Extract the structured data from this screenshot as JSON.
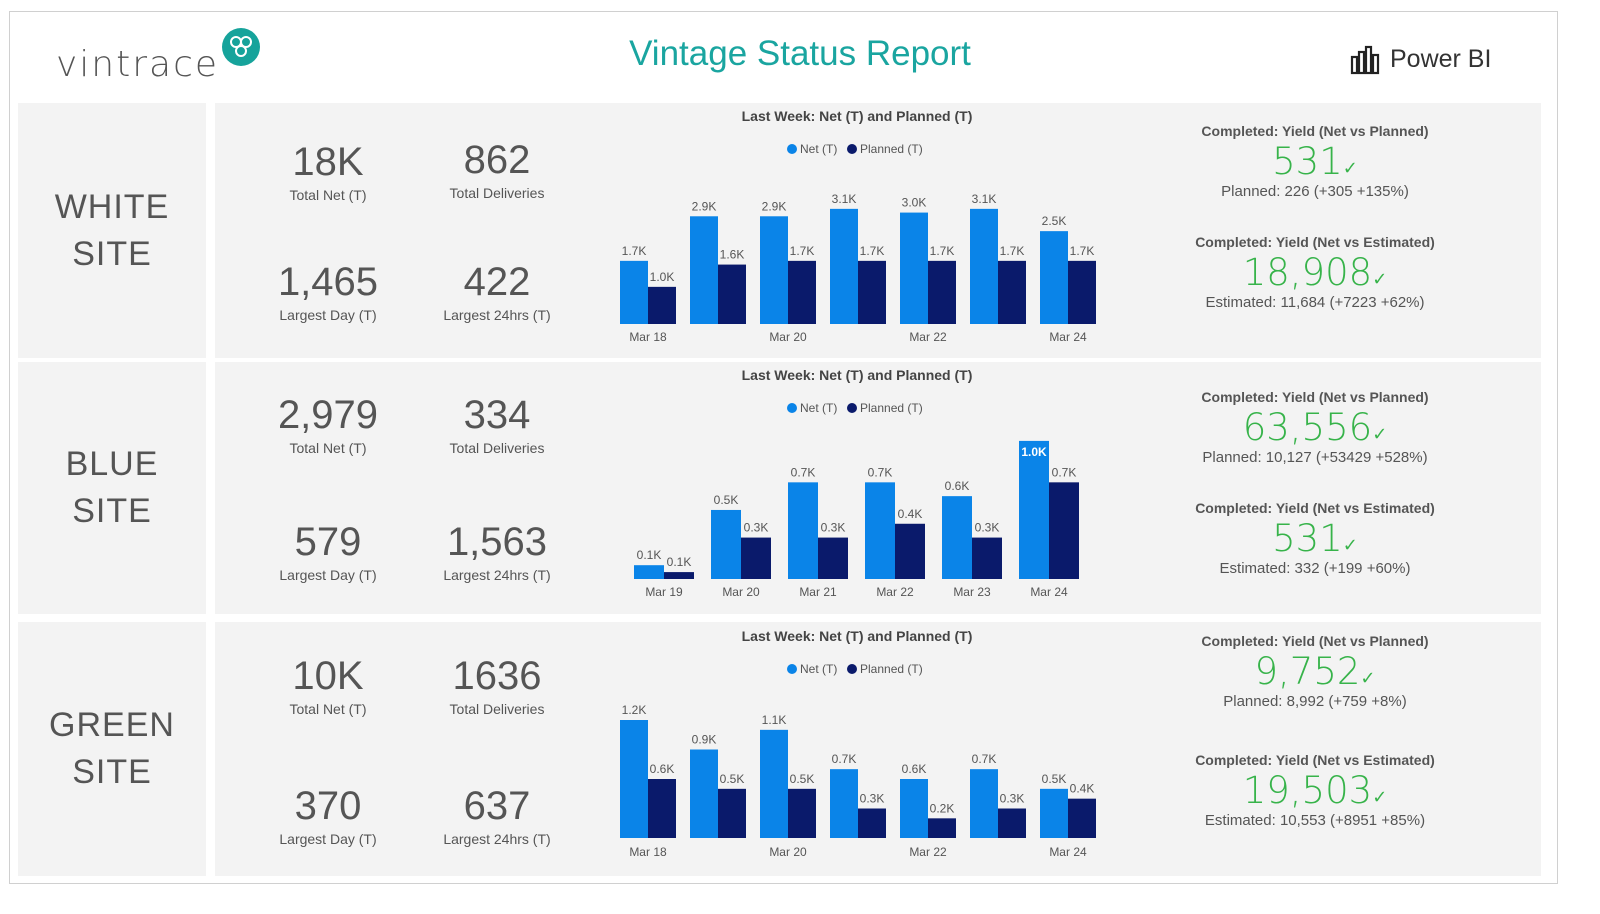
{
  "header": {
    "brand": "vintrace",
    "title": "Vintage Status Report",
    "powerbi": "Power BI"
  },
  "colors": {
    "net": "#0a84e8",
    "planned": "#0a1a6b",
    "accent": "#1aa5a0",
    "good": "#37b34a"
  },
  "sites": [
    {
      "name_line1": "WHITE",
      "name_line2": "SITE",
      "kpis": {
        "total_net": {
          "value": "18K",
          "label": "Total Net (T)"
        },
        "total_deliveries": {
          "value": "862",
          "label": "Total Deliveries"
        },
        "largest_day": {
          "value": "1,465",
          "label": "Largest Day (T)"
        },
        "largest_24hrs": {
          "value": "422",
          "label": "Largest 24hrs (T)"
        }
      },
      "chart_data": {
        "type": "bar",
        "title": "Last Week: Net (T) and Planned (T)",
        "legend": [
          "Net (T)",
          "Planned (T)"
        ],
        "categories": [
          "Mar 18",
          "",
          "Mar 20",
          "",
          "Mar 22",
          "",
          "Mar 24"
        ],
        "series": [
          {
            "name": "Net (T)",
            "values": [
              1.7,
              2.9,
              2.9,
              3.1,
              3.0,
              3.1,
              2.5
            ],
            "labels": [
              "1.7K",
              "2.9K",
              "2.9K",
              "3.1K",
              "3.0K",
              "3.1K",
              "2.5K"
            ]
          },
          {
            "name": "Planned (T)",
            "values": [
              1.0,
              1.6,
              1.7,
              1.7,
              1.7,
              1.7,
              1.7
            ],
            "labels": [
              "1.0K",
              "1.6K",
              "1.7K",
              "1.7K",
              "1.7K",
              "1.7K",
              "1.7K"
            ]
          }
        ],
        "ylim": [
          0,
          3.5
        ]
      },
      "yield_planned": {
        "title": "Completed: Yield (Net vs Planned)",
        "value": "531",
        "sub": "Planned: 226 (+305 +135%)"
      },
      "yield_estimated": {
        "title": "Completed: Yield (Net vs Estimated)",
        "value": "18,908",
        "sub": "Estimated: 11,684 (+7223 +62%)"
      }
    },
    {
      "name_line1": "BLUE",
      "name_line2": "SITE",
      "kpis": {
        "total_net": {
          "value": "2,979",
          "label": "Total Net (T)"
        },
        "total_deliveries": {
          "value": "334",
          "label": "Total Deliveries"
        },
        "largest_day": {
          "value": "579",
          "label": "Largest Day (T)"
        },
        "largest_24hrs": {
          "value": "1,563",
          "label": "Largest 24hrs (T)"
        }
      },
      "chart_data": {
        "type": "bar",
        "title": "Last Week: Net (T) and Planned (T)",
        "legend": [
          "Net (T)",
          "Planned (T)"
        ],
        "categories": [
          "Mar 19",
          "Mar 20",
          "Mar 21",
          "Mar 22",
          "Mar 23",
          "Mar 24"
        ],
        "series": [
          {
            "name": "Net (T)",
            "values": [
              0.1,
              0.5,
              0.7,
              0.7,
              0.6,
              1.0
            ],
            "labels": [
              "0.1K",
              "0.5K",
              "0.7K",
              "0.7K",
              "0.6K",
              "1.0K"
            ]
          },
          {
            "name": "Planned (T)",
            "values": [
              0.05,
              0.3,
              0.3,
              0.4,
              0.3,
              0.7
            ],
            "labels": [
              "0.1K",
              "0.3K",
              "0.3K",
              "0.4K",
              "0.3K",
              "0.7K"
            ]
          }
        ],
        "ylim": [
          0,
          1.05
        ]
      },
      "yield_planned": {
        "title": "Completed: Yield (Net vs Planned)",
        "value": "63,556",
        "sub": "Planned: 10,127 (+53429 +528%)"
      },
      "yield_estimated": {
        "title": "Completed: Yield (Net vs Estimated)",
        "value": "531",
        "sub": "Estimated: 332 (+199 +60%)"
      }
    },
    {
      "name_line1": "GREEN",
      "name_line2": "SITE",
      "kpis": {
        "total_net": {
          "value": "10K",
          "label": "Total Net (T)"
        },
        "total_deliveries": {
          "value": "1636",
          "label": "Total Deliveries"
        },
        "largest_day": {
          "value": "370",
          "label": "Largest Day (T)"
        },
        "largest_24hrs": {
          "value": "637",
          "label": "Largest 24hrs (T)"
        }
      },
      "chart_data": {
        "type": "bar",
        "title": "Last Week: Net (T) and Planned (T)",
        "legend": [
          "Net (T)",
          "Planned (T)"
        ],
        "categories": [
          "Mar 18",
          "",
          "Mar 20",
          "",
          "Mar 22",
          "",
          "Mar 24"
        ],
        "series": [
          {
            "name": "Net (T)",
            "values": [
              1.2,
              0.9,
              1.1,
              0.7,
              0.6,
              0.7,
              0.5
            ],
            "labels": [
              "1.2K",
              "0.9K",
              "1.1K",
              "0.7K",
              "0.6K",
              "0.7K",
              "0.5K"
            ]
          },
          {
            "name": "Planned (T)",
            "values": [
              0.6,
              0.5,
              0.5,
              0.3,
              0.2,
              0.3,
              0.4
            ],
            "labels": [
              "0.6K",
              "0.5K",
              "0.5K",
              "0.3K",
              "0.2K",
              "0.3K",
              "0.4K"
            ]
          }
        ],
        "ylim": [
          0,
          1.2
        ]
      },
      "yield_planned": {
        "title": "Completed: Yield (Net vs Planned)",
        "value": "9,752",
        "sub": "Planned: 8,992 (+759 +8%)"
      },
      "yield_estimated": {
        "title": "Completed: Yield (Net vs Estimated)",
        "value": "19,503",
        "sub": "Estimated: 10,553 (+8951 +85%)"
      }
    }
  ]
}
